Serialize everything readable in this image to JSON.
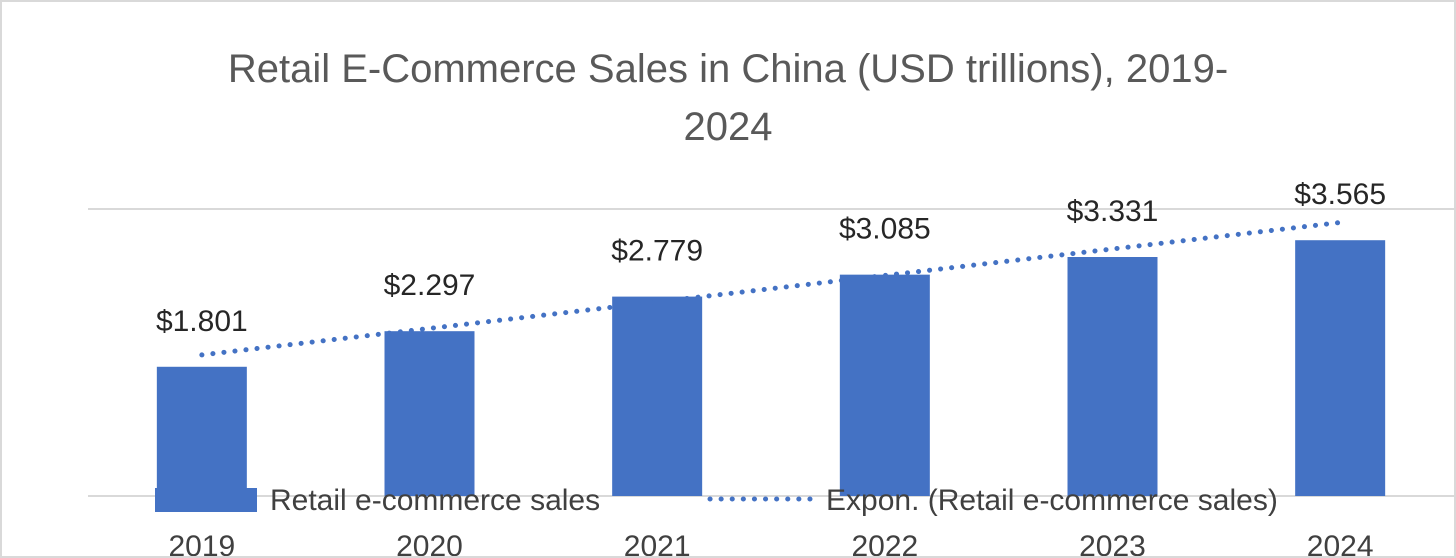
{
  "chart_data": {
    "type": "bar",
    "title": "Retail E-Commerce Sales in China (USD trillions), 2019-2024",
    "title_lines": [
      "Retail E-Commerce Sales in China (USD trillions), 2019-",
      "2024"
    ],
    "categories": [
      "2019",
      "2020",
      "2021",
      "2022",
      "2023",
      "2024"
    ],
    "series": [
      {
        "name": "Retail e-commerce sales",
        "values": [
          1.801,
          2.297,
          2.779,
          3.085,
          3.331,
          3.565
        ],
        "data_labels": [
          "$1.801",
          "$2.297",
          "$2.779",
          "$3.085",
          "$3.331",
          "$3.565"
        ],
        "color": "#4472c4"
      }
    ],
    "trendline": {
      "name": "Expon. (Retail e-commerce sales)",
      "kind": "exponential",
      "style": "dotted",
      "color": "#4472c4"
    },
    "ylim": [
      0,
      4
    ],
    "y_ticks_shown": false,
    "grid": true,
    "legend_position": "bottom",
    "xlabel": "",
    "ylabel": ""
  }
}
